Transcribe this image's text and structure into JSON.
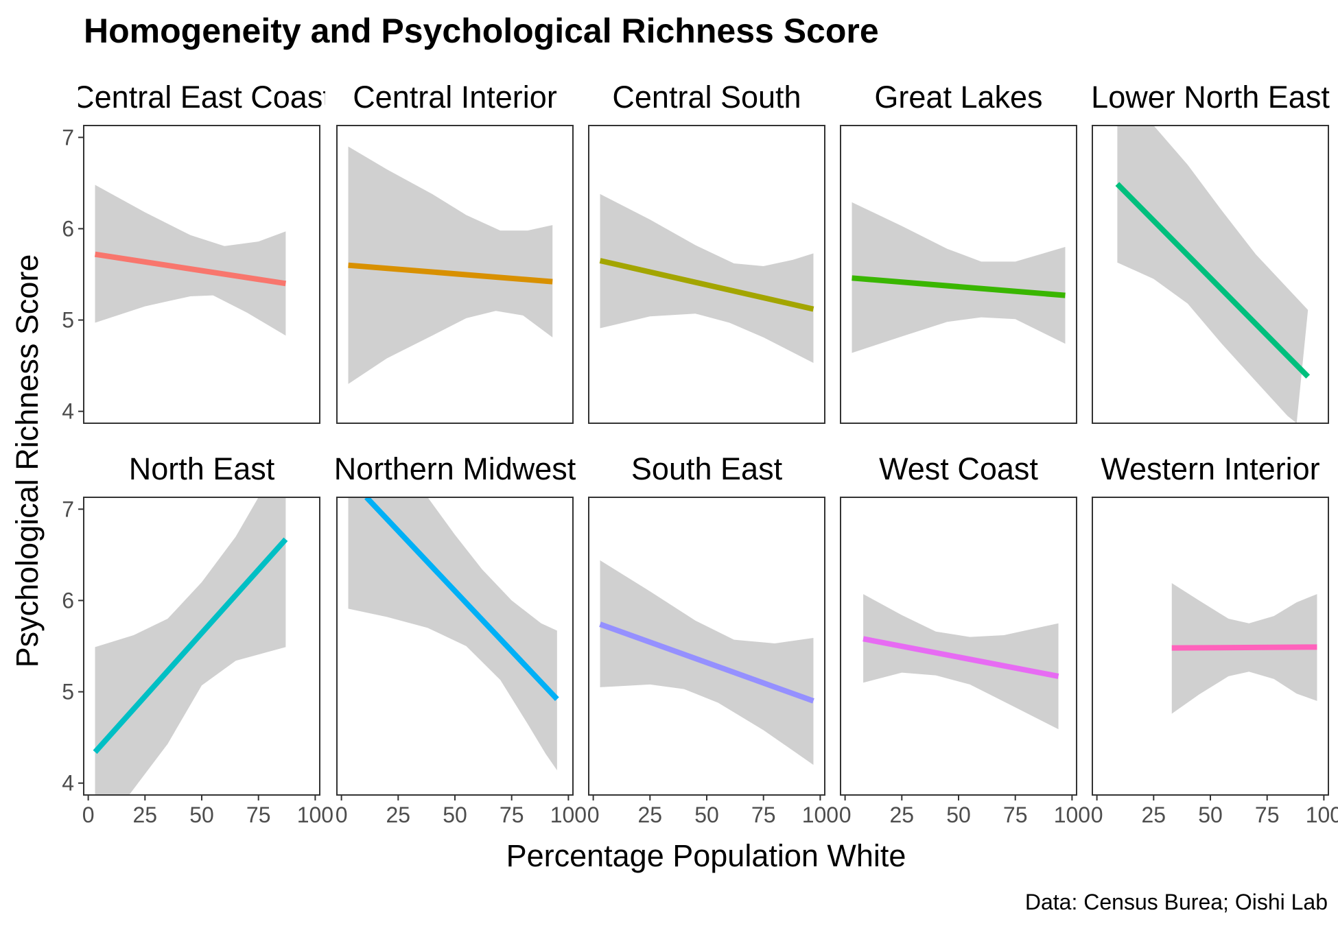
{
  "chart_data": {
    "type": "line",
    "subtype": "faceted linear fit with confidence band",
    "title": "Homogeneity and Psychological Richness Score",
    "xlabel": "Percentage Population White",
    "ylabel": "Psychological Richness Score",
    "caption": "Data: Census Burea; Oishi Lab",
    "xlim": [
      -2,
      102
    ],
    "ylim": [
      3.87,
      7.13
    ],
    "x_ticks": [
      0,
      25,
      50,
      75,
      100
    ],
    "y_ticks": [
      4,
      5,
      6,
      7
    ],
    "grid": false,
    "legend": "none",
    "facet_layout": {
      "rows": 2,
      "cols": 5
    },
    "panels": [
      {
        "name": "Central East Coast",
        "color": "#F8766D",
        "fit": [
          [
            3,
            5.72
          ],
          [
            87,
            5.4
          ]
        ],
        "band_upper": [
          [
            3,
            6.48
          ],
          [
            25,
            6.18
          ],
          [
            45,
            5.93
          ],
          [
            60,
            5.81
          ],
          [
            75,
            5.86
          ],
          [
            87,
            5.97
          ]
        ],
        "band_lower": [
          [
            3,
            4.97
          ],
          [
            25,
            5.15
          ],
          [
            45,
            5.26
          ],
          [
            55,
            5.27
          ],
          [
            70,
            5.08
          ],
          [
            87,
            4.83
          ]
        ]
      },
      {
        "name": "Central Interior",
        "color": "#D89000",
        "fit": [
          [
            3,
            5.6
          ],
          [
            93,
            5.42
          ]
        ],
        "band_upper": [
          [
            3,
            6.9
          ],
          [
            20,
            6.65
          ],
          [
            40,
            6.38
          ],
          [
            55,
            6.15
          ],
          [
            70,
            5.98
          ],
          [
            82,
            5.98
          ],
          [
            93,
            6.04
          ]
        ],
        "band_lower": [
          [
            3,
            4.3
          ],
          [
            20,
            4.58
          ],
          [
            40,
            4.83
          ],
          [
            55,
            5.02
          ],
          [
            68,
            5.1
          ],
          [
            80,
            5.05
          ],
          [
            93,
            4.81
          ]
        ]
      },
      {
        "name": "Central South",
        "color": "#A3A500",
        "fit": [
          [
            3,
            5.65
          ],
          [
            97,
            5.12
          ]
        ],
        "band_upper": [
          [
            3,
            6.38
          ],
          [
            25,
            6.1
          ],
          [
            45,
            5.82
          ],
          [
            62,
            5.62
          ],
          [
            75,
            5.59
          ],
          [
            88,
            5.66
          ],
          [
            97,
            5.73
          ]
        ],
        "band_lower": [
          [
            3,
            4.91
          ],
          [
            25,
            5.04
          ],
          [
            45,
            5.07
          ],
          [
            60,
            4.97
          ],
          [
            75,
            4.81
          ],
          [
            97,
            4.53
          ]
        ]
      },
      {
        "name": "Great Lakes",
        "color": "#39B600",
        "fit": [
          [
            3,
            5.46
          ],
          [
            97,
            5.27
          ]
        ],
        "band_upper": [
          [
            3,
            6.29
          ],
          [
            25,
            6.03
          ],
          [
            45,
            5.78
          ],
          [
            60,
            5.64
          ],
          [
            75,
            5.64
          ],
          [
            97,
            5.8
          ]
        ],
        "band_lower": [
          [
            3,
            4.64
          ],
          [
            25,
            4.82
          ],
          [
            45,
            4.98
          ],
          [
            60,
            5.03
          ],
          [
            75,
            5.01
          ],
          [
            97,
            4.74
          ]
        ]
      },
      {
        "name": "Lower North East",
        "color": "#00BF7D",
        "fit": [
          [
            9,
            6.49
          ],
          [
            93,
            4.38
          ]
        ],
        "band_upper": [
          [
            9,
            7.13
          ],
          [
            25,
            7.13
          ],
          [
            40,
            6.7
          ],
          [
            55,
            6.2
          ],
          [
            70,
            5.72
          ],
          [
            93,
            5.11
          ]
        ],
        "band_lower": [
          [
            9,
            5.63
          ],
          [
            25,
            5.45
          ],
          [
            40,
            5.18
          ],
          [
            55,
            4.74
          ],
          [
            70,
            4.33
          ],
          [
            84,
            3.95
          ],
          [
            88,
            3.87
          ]
        ]
      },
      {
        "name": "North East",
        "color": "#00BFC4",
        "fit": [
          [
            3,
            4.34
          ],
          [
            87,
            6.67
          ]
        ],
        "band_upper": [
          [
            3,
            5.49
          ],
          [
            20,
            5.62
          ],
          [
            35,
            5.8
          ],
          [
            50,
            6.2
          ],
          [
            65,
            6.7
          ],
          [
            75,
            7.13
          ],
          [
            87,
            7.13
          ]
        ],
        "band_lower": [
          [
            3,
            3.87
          ],
          [
            18,
            3.87
          ],
          [
            35,
            4.43
          ],
          [
            50,
            5.07
          ],
          [
            65,
            5.34
          ],
          [
            87,
            5.49
          ]
        ]
      },
      {
        "name": "Northern Midwest",
        "color": "#00B0F6",
        "fit": [
          [
            11,
            7.13
          ],
          [
            95,
            4.92
          ]
        ],
        "band_upper": [
          [
            3,
            7.13
          ],
          [
            38,
            7.13
          ],
          [
            50,
            6.72
          ],
          [
            62,
            6.34
          ],
          [
            75,
            6.0
          ],
          [
            88,
            5.75
          ],
          [
            95,
            5.67
          ]
        ],
        "band_lower": [
          [
            3,
            5.91
          ],
          [
            20,
            5.82
          ],
          [
            38,
            5.7
          ],
          [
            55,
            5.5
          ],
          [
            70,
            5.13
          ],
          [
            82,
            4.65
          ],
          [
            90,
            4.32
          ],
          [
            95,
            4.14
          ]
        ]
      },
      {
        "name": "South East",
        "color": "#9590FF",
        "fit": [
          [
            3,
            5.74
          ],
          [
            97,
            4.9
          ]
        ],
        "band_upper": [
          [
            3,
            6.44
          ],
          [
            25,
            6.1
          ],
          [
            45,
            5.78
          ],
          [
            62,
            5.57
          ],
          [
            80,
            5.53
          ],
          [
            97,
            5.59
          ]
        ],
        "band_lower": [
          [
            3,
            5.05
          ],
          [
            25,
            5.08
          ],
          [
            40,
            5.03
          ],
          [
            55,
            4.88
          ],
          [
            75,
            4.58
          ],
          [
            97,
            4.2
          ]
        ]
      },
      {
        "name": "West Coast",
        "color": "#E76BF3",
        "fit": [
          [
            8,
            5.58
          ],
          [
            94,
            5.17
          ]
        ],
        "band_upper": [
          [
            8,
            6.07
          ],
          [
            25,
            5.84
          ],
          [
            40,
            5.66
          ],
          [
            55,
            5.6
          ],
          [
            70,
            5.62
          ],
          [
            94,
            5.75
          ]
        ],
        "band_lower": [
          [
            8,
            5.1
          ],
          [
            25,
            5.21
          ],
          [
            40,
            5.18
          ],
          [
            55,
            5.08
          ],
          [
            75,
            4.83
          ],
          [
            94,
            4.59
          ]
        ]
      },
      {
        "name": "Western Interior",
        "color": "#FF62BC",
        "fit": [
          [
            33,
            5.48
          ],
          [
            97,
            5.49
          ]
        ],
        "band_upper": [
          [
            33,
            6.19
          ],
          [
            45,
            6.0
          ],
          [
            58,
            5.8
          ],
          [
            67,
            5.75
          ],
          [
            78,
            5.83
          ],
          [
            88,
            5.98
          ],
          [
            97,
            6.07
          ]
        ],
        "band_lower": [
          [
            33,
            4.76
          ],
          [
            45,
            4.97
          ],
          [
            58,
            5.17
          ],
          [
            67,
            5.22
          ],
          [
            78,
            5.14
          ],
          [
            88,
            4.98
          ],
          [
            97,
            4.9
          ]
        ]
      }
    ]
  }
}
